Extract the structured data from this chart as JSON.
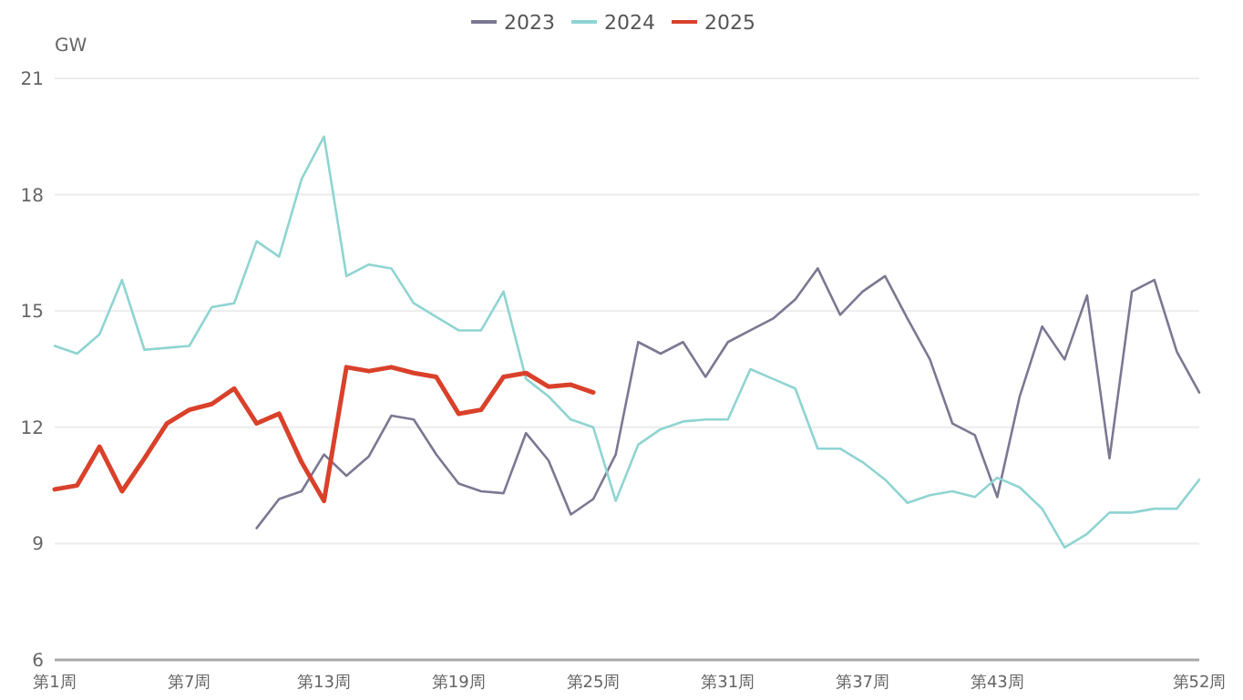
{
  "chart_data": {
    "type": "line",
    "ylabel": "GW",
    "categories": [
      "第1周",
      null,
      null,
      null,
      null,
      null,
      "第7周",
      null,
      null,
      null,
      null,
      null,
      "第13周",
      null,
      null,
      null,
      null,
      null,
      "第19周",
      null,
      null,
      null,
      null,
      null,
      "第25周",
      null,
      null,
      null,
      null,
      null,
      "第31周",
      null,
      null,
      null,
      null,
      null,
      "第37周",
      null,
      null,
      null,
      null,
      null,
      "第43周",
      null,
      null,
      null,
      null,
      null,
      null,
      null,
      null,
      "第52周"
    ],
    "ylim": [
      6,
      21
    ],
    "yticks": [
      6,
      9,
      12,
      15,
      18,
      21
    ],
    "grid": "y",
    "legend": "top",
    "marker": "none",
    "line_style": "solid",
    "series": [
      {
        "name": "2023",
        "color": "#7b7892",
        "values": [
          null,
          null,
          null,
          null,
          null,
          null,
          null,
          null,
          null,
          9.4,
          10.15,
          10.35,
          11.3,
          10.75,
          11.25,
          12.3,
          12.2,
          11.3,
          10.55,
          10.35,
          10.3,
          11.85,
          11.15,
          9.75,
          10.15,
          11.3,
          14.2,
          13.9,
          14.2,
          13.3,
          14.2,
          14.5,
          14.8,
          15.3,
          16.1,
          14.9,
          15.5,
          15.9,
          14.8,
          13.75,
          12.1,
          11.8,
          10.2,
          12.8,
          14.6,
          13.75,
          15.4,
          11.2,
          15.5,
          15.8,
          13.95,
          12.9
        ]
      },
      {
        "name": "2024",
        "color": "#8fd4d2",
        "values": [
          14.1,
          13.9,
          14.4,
          15.8,
          14.0,
          14.05,
          14.1,
          15.1,
          15.2,
          16.8,
          16.4,
          18.4,
          19.5,
          15.9,
          16.2,
          16.1,
          15.2,
          14.85,
          14.5,
          14.5,
          15.5,
          13.25,
          12.8,
          12.2,
          12.0,
          10.1,
          11.55,
          11.95,
          12.15,
          12.2,
          12.2,
          13.5,
          13.25,
          13.0,
          11.45,
          11.45,
          11.1,
          10.65,
          10.05,
          10.25,
          10.35,
          10.2,
          10.7,
          10.45,
          9.9,
          8.9,
          9.25,
          9.8,
          9.8,
          9.9,
          9.9,
          10.65
        ]
      },
      {
        "name": "2025",
        "color": "#d9412b",
        "values": [
          10.4,
          10.5,
          11.5,
          10.35,
          11.2,
          12.1,
          12.45,
          12.6,
          13.0,
          12.1,
          12.35,
          11.1,
          10.1,
          13.55,
          13.45,
          13.55,
          13.4,
          13.3,
          12.35,
          12.45,
          13.3,
          13.4,
          13.05,
          13.1,
          12.9,
          null,
          null,
          null,
          null,
          null,
          null,
          null,
          null,
          null,
          null,
          null,
          null,
          null,
          null,
          null,
          null,
          null,
          null,
          null,
          null,
          null,
          null,
          null,
          null,
          null,
          null,
          null
        ]
      }
    ]
  }
}
